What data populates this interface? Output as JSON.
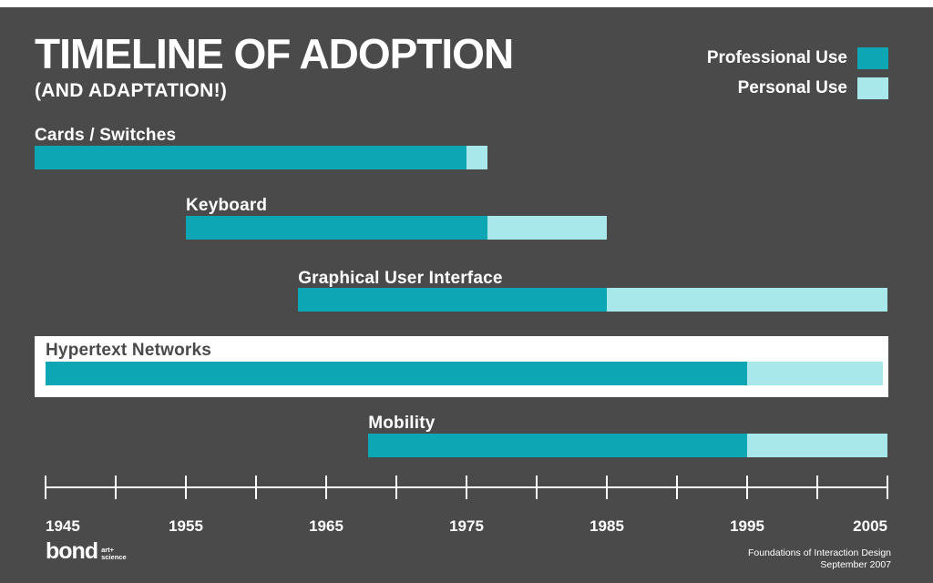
{
  "colors": {
    "background": "#4A4A4A",
    "professional_use": "#0CA6B5",
    "personal_use": "#A8E8EA",
    "highlight_band": "#FFFFFF"
  },
  "chart_data": {
    "type": "bar",
    "variant": "horizontal-timeline",
    "title": "TIMELINE OF ADOPTION",
    "subtitle": "(AND ADAPTATION!)",
    "legend": [
      {
        "name": "Professional Use",
        "color": "#0CA6B5"
      },
      {
        "name": "Personal Use",
        "color": "#A8E8EA"
      }
    ],
    "xlim": [
      1945,
      2005
    ],
    "x_tick_labels": [
      "1945",
      "1955",
      "1965",
      "1975",
      "1985",
      "1995",
      "2005"
    ],
    "minor_tick_interval_years": 5,
    "legend_position": "top-right",
    "rows": [
      {
        "label": "Cards / Switches",
        "professional_use": [
          1944,
          1975
        ],
        "personal_use": [
          1975,
          1976.5
        ],
        "highlighted": false
      },
      {
        "label": "Keyboard",
        "professional_use": [
          1955,
          1976.5
        ],
        "personal_use": [
          1976.5,
          1985
        ],
        "highlighted": false
      },
      {
        "label": "Graphical User Interface",
        "professional_use": [
          1963,
          1985
        ],
        "personal_use": [
          1985,
          2005
        ],
        "highlighted": false
      },
      {
        "label": "Hypertext Networks",
        "professional_use": [
          1945,
          1995
        ],
        "personal_use": [
          1995,
          2004.7
        ],
        "highlighted": true
      },
      {
        "label": "Mobility",
        "professional_use": [
          1968,
          1995
        ],
        "personal_use": [
          1995,
          2005
        ],
        "highlighted": false
      }
    ]
  },
  "footer": {
    "logo_text": "bond",
    "logo_tagline_line1": "art+",
    "logo_tagline_line2": "science",
    "credit_line1": "Foundations of Interaction Design",
    "credit_line2": "September 2007"
  }
}
